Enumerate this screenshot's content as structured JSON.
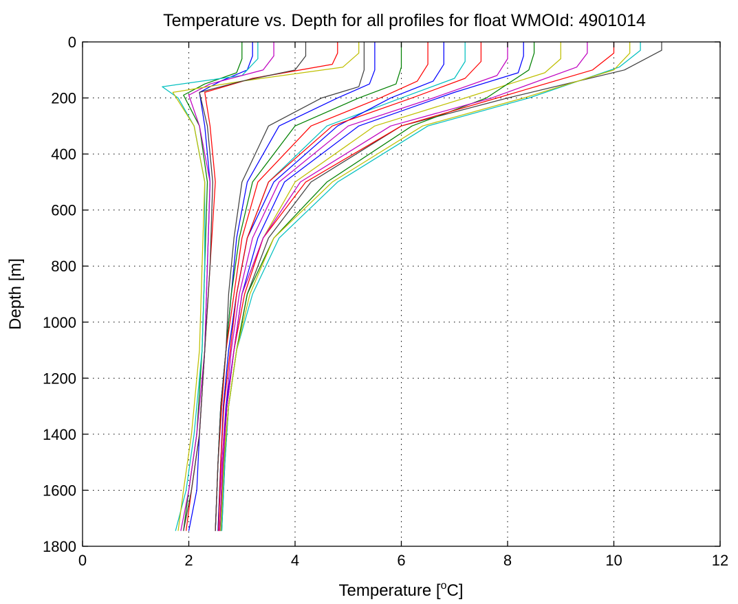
{
  "chart_data": {
    "type": "line",
    "title": "Temperature vs. Depth for all profiles for float WMOId: 4901014",
    "xlabel_main": "Temperature [",
    "xlabel_sup": "o",
    "xlabel_end": "C]",
    "ylabel": "Depth [m]",
    "xlim": [
      0,
      12
    ],
    "ylim": [
      0,
      1800
    ],
    "y_reversed": true,
    "grid": true,
    "x_ticks": [
      0,
      2,
      4,
      6,
      8,
      10,
      12
    ],
    "y_ticks": [
      0,
      200,
      400,
      600,
      800,
      1000,
      1200,
      1400,
      1600,
      1800
    ],
    "x_tick_labels": [
      "0",
      "2",
      "4",
      "6",
      "8",
      "10",
      "12"
    ],
    "y_tick_labels": [
      "0",
      "200",
      "400",
      "600",
      "800",
      "1000",
      "1200",
      "1400",
      "1600",
      "1800"
    ],
    "colors": [
      "#0000ff",
      "#008000",
      "#ff0000",
      "#00bfbf",
      "#bf00bf",
      "#bfbf00",
      "#404040"
    ],
    "series": [
      {
        "color": "#0000ff",
        "x": [
          3.2,
          3.2,
          3.1,
          2.6,
          2.2,
          2.3,
          2.4,
          2.35,
          2.3,
          2.2,
          2.15,
          2.0
        ],
        "y": [
          0,
          50,
          100,
          140,
          180,
          300,
          500,
          800,
          1100,
          1400,
          1600,
          1745
        ]
      },
      {
        "color": "#008000",
        "x": [
          3.0,
          3.0,
          2.9,
          2.3,
          1.9,
          2.2,
          2.35,
          2.3,
          2.25,
          2.15,
          2.0,
          1.9
        ],
        "y": [
          0,
          60,
          110,
          150,
          190,
          300,
          500,
          800,
          1100,
          1400,
          1600,
          1745
        ]
      },
      {
        "color": "#ff0000",
        "x": [
          4.8,
          4.8,
          4.7,
          3.2,
          2.3,
          2.4,
          2.5,
          2.4,
          2.3,
          2.2,
          2.05,
          1.95
        ],
        "y": [
          0,
          40,
          80,
          130,
          180,
          300,
          500,
          800,
          1100,
          1400,
          1600,
          1745
        ]
      },
      {
        "color": "#00bfbf",
        "x": [
          3.3,
          3.3,
          3.0,
          1.5,
          1.8,
          2.1,
          2.3,
          2.3,
          2.25,
          2.1,
          1.95,
          1.75
        ],
        "y": [
          0,
          60,
          120,
          160,
          200,
          300,
          500,
          800,
          1100,
          1400,
          1600,
          1745
        ]
      },
      {
        "color": "#bf00bf",
        "x": [
          3.6,
          3.6,
          3.4,
          2.4,
          2.0,
          2.2,
          2.4,
          2.35,
          2.3,
          2.15,
          2.0,
          1.85
        ],
        "y": [
          0,
          50,
          100,
          150,
          190,
          300,
          500,
          800,
          1100,
          1400,
          1600,
          1745
        ]
      },
      {
        "color": "#bfbf00",
        "x": [
          5.2,
          5.2,
          4.9,
          3.0,
          1.7,
          2.1,
          2.3,
          2.25,
          2.2,
          2.05,
          1.9,
          1.8
        ],
        "y": [
          0,
          40,
          90,
          140,
          180,
          300,
          500,
          800,
          1100,
          1400,
          1600,
          1745
        ]
      },
      {
        "color": "#404040",
        "x": [
          4.2,
          4.2,
          4.0,
          3.0,
          2.2,
          2.35,
          2.45,
          2.4,
          2.3,
          2.2,
          2.05,
          1.9
        ],
        "y": [
          0,
          50,
          100,
          140,
          180,
          300,
          500,
          800,
          1100,
          1400,
          1600,
          1745
        ]
      },
      {
        "color": "#0000ff",
        "x": [
          5.5,
          5.5,
          5.4,
          4.8,
          3.7,
          3.1,
          2.9,
          2.8,
          2.7,
          2.6,
          2.55,
          2.5
        ],
        "y": [
          0,
          100,
          150,
          200,
          300,
          500,
          700,
          900,
          1100,
          1300,
          1500,
          1745
        ]
      },
      {
        "color": "#008000",
        "x": [
          6.0,
          6.0,
          5.9,
          5.2,
          4.0,
          3.2,
          2.95,
          2.8,
          2.7,
          2.6,
          2.55,
          2.5
        ],
        "y": [
          0,
          90,
          150,
          200,
          300,
          500,
          700,
          900,
          1100,
          1300,
          1500,
          1745
        ]
      },
      {
        "color": "#ff0000",
        "x": [
          6.5,
          6.5,
          6.3,
          5.6,
          4.3,
          3.3,
          3.0,
          2.85,
          2.7,
          2.62,
          2.55,
          2.5
        ],
        "y": [
          0,
          80,
          140,
          200,
          300,
          500,
          700,
          900,
          1100,
          1300,
          1500,
          1745
        ]
      },
      {
        "color": "#00bfbf",
        "x": [
          7.2,
          7.2,
          7.0,
          6.0,
          4.6,
          3.5,
          3.1,
          2.9,
          2.75,
          2.65,
          2.6,
          2.55
        ],
        "y": [
          0,
          70,
          130,
          200,
          300,
          500,
          700,
          900,
          1100,
          1300,
          1500,
          1745
        ]
      },
      {
        "color": "#bf00bf",
        "x": [
          8.0,
          8.0,
          7.8,
          6.6,
          5.0,
          3.7,
          3.2,
          2.95,
          2.8,
          2.7,
          2.62,
          2.55
        ],
        "y": [
          0,
          60,
          120,
          200,
          300,
          500,
          700,
          900,
          1100,
          1300,
          1500,
          1745
        ]
      },
      {
        "color": "#bfbf00",
        "x": [
          9.0,
          9.0,
          8.7,
          7.2,
          5.5,
          4.0,
          3.4,
          3.0,
          2.85,
          2.72,
          2.65,
          2.6
        ],
        "y": [
          0,
          60,
          110,
          200,
          300,
          500,
          700,
          900,
          1100,
          1300,
          1500,
          1745
        ]
      },
      {
        "color": "#404040",
        "x": [
          10.9,
          10.9,
          10.2,
          8.0,
          6.0,
          4.3,
          3.5,
          3.1,
          2.9,
          2.75,
          2.68,
          2.62
        ],
        "y": [
          0,
          30,
          100,
          200,
          300,
          500,
          700,
          900,
          1100,
          1300,
          1500,
          1745
        ]
      },
      {
        "color": "#0000ff",
        "x": [
          8.3,
          8.3,
          8.2,
          7.0,
          5.2,
          3.8,
          3.3,
          3.0,
          2.85,
          2.7,
          2.65,
          2.6
        ],
        "y": [
          0,
          50,
          110,
          180,
          300,
          500,
          700,
          900,
          1100,
          1300,
          1500,
          1745
        ]
      },
      {
        "color": "#008000",
        "x": [
          8.5,
          8.5,
          8.4,
          7.6,
          6.2,
          4.6,
          3.6,
          3.1,
          2.9,
          2.75,
          2.66,
          2.6
        ],
        "y": [
          0,
          40,
          100,
          200,
          300,
          500,
          700,
          900,
          1100,
          1300,
          1500,
          1745
        ]
      },
      {
        "color": "#ff0000",
        "x": [
          10.0,
          10.0,
          9.6,
          7.8,
          6.0,
          4.2,
          3.4,
          3.05,
          2.85,
          2.72,
          2.64,
          2.58
        ],
        "y": [
          0,
          40,
          100,
          200,
          300,
          500,
          700,
          900,
          1100,
          1300,
          1500,
          1745
        ]
      },
      {
        "color": "#00bfbf",
        "x": [
          10.5,
          10.5,
          10.1,
          8.4,
          6.5,
          4.8,
          3.7,
          3.2,
          2.9,
          2.75,
          2.68,
          2.62
        ],
        "y": [
          0,
          30,
          90,
          200,
          300,
          500,
          700,
          900,
          1100,
          1300,
          1500,
          1745
        ]
      },
      {
        "color": "#bf00bf",
        "x": [
          9.5,
          9.5,
          9.3,
          7.7,
          5.8,
          4.1,
          3.4,
          3.0,
          2.85,
          2.72,
          2.64,
          2.58
        ],
        "y": [
          0,
          40,
          90,
          200,
          300,
          500,
          700,
          900,
          1100,
          1300,
          1500,
          1745
        ]
      },
      {
        "color": "#bfbf00",
        "x": [
          10.3,
          10.3,
          10.0,
          8.3,
          6.4,
          4.7,
          3.6,
          3.15,
          2.9,
          2.75,
          2.66,
          2.6
        ],
        "y": [
          0,
          40,
          100,
          200,
          300,
          500,
          700,
          900,
          1100,
          1300,
          1500,
          1745
        ]
      },
      {
        "color": "#404040",
        "x": [
          5.3,
          5.3,
          5.2,
          4.5,
          3.5,
          3.0,
          2.85,
          2.75,
          2.7,
          2.6,
          2.55,
          2.5
        ],
        "y": [
          0,
          100,
          160,
          200,
          300,
          500,
          700,
          900,
          1100,
          1300,
          1500,
          1745
        ]
      },
      {
        "color": "#0000ff",
        "x": [
          6.8,
          6.8,
          6.6,
          5.8,
          4.8,
          3.6,
          3.1,
          2.9,
          2.75,
          2.65,
          2.6,
          2.55
        ],
        "y": [
          0,
          80,
          140,
          200,
          300,
          500,
          700,
          900,
          1100,
          1300,
          1500,
          1745
        ]
      },
      {
        "color": "#ff0000",
        "x": [
          7.5,
          7.5,
          7.2,
          6.2,
          4.7,
          3.5,
          3.1,
          2.9,
          2.78,
          2.66,
          2.6,
          2.56
        ],
        "y": [
          0,
          70,
          130,
          200,
          300,
          500,
          700,
          900,
          1100,
          1300,
          1500,
          1745
        ]
      }
    ]
  }
}
